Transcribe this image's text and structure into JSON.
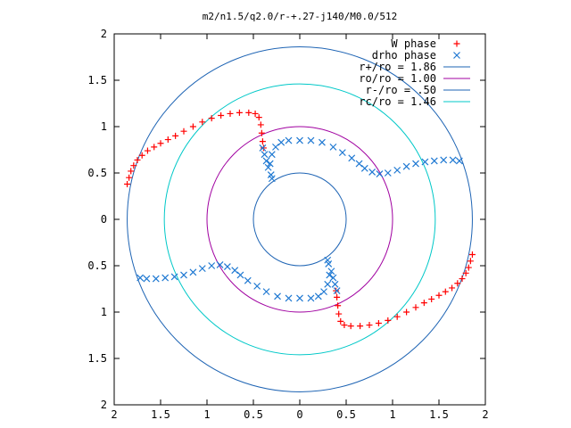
{
  "chart_data": {
    "type": "scatter",
    "title": "m2/n1.5/q2.0/r-+.27-j140/M0.0/512",
    "xlabel": "",
    "ylabel": "",
    "xlim": [
      -2,
      2
    ],
    "ylim": [
      -2,
      2
    ],
    "x_tick_labels": [
      "2",
      "1.5",
      "1",
      "0.5",
      "0",
      "0.5",
      "1",
      "1.5",
      "2"
    ],
    "y_tick_labels": [
      "2",
      "1.5",
      "1",
      "0.5",
      "0",
      "0.5",
      "1",
      "1.5",
      "2"
    ],
    "grid": false,
    "legend_position": "top-right",
    "series": [
      {
        "name": "W phase",
        "kind": "points",
        "marker": "plus",
        "color": "#ff0000",
        "points": [
          [
            -1.86,
            0.38
          ],
          [
            -1.84,
            0.45
          ],
          [
            -1.82,
            0.52
          ],
          [
            -1.79,
            0.58
          ],
          [
            -1.75,
            0.64
          ],
          [
            -1.7,
            0.69
          ],
          [
            -1.64,
            0.74
          ],
          [
            -1.57,
            0.78
          ],
          [
            -1.5,
            0.82
          ],
          [
            -1.42,
            0.86
          ],
          [
            -1.34,
            0.9
          ],
          [
            -1.25,
            0.95
          ],
          [
            -1.15,
            1.0
          ],
          [
            -1.05,
            1.05
          ],
          [
            -0.95,
            1.09
          ],
          [
            -0.85,
            1.12
          ],
          [
            -0.75,
            1.14
          ],
          [
            -0.65,
            1.15
          ],
          [
            -0.55,
            1.15
          ],
          [
            -0.48,
            1.14
          ],
          [
            -0.44,
            1.1
          ],
          [
            -0.42,
            1.02
          ],
          [
            -0.41,
            0.93
          ],
          [
            -0.4,
            0.84
          ],
          [
            -0.39,
            0.77
          ],
          [
            1.86,
            -0.38
          ],
          [
            1.84,
            -0.45
          ],
          [
            1.82,
            -0.52
          ],
          [
            1.79,
            -0.58
          ],
          [
            1.75,
            -0.64
          ],
          [
            1.7,
            -0.69
          ],
          [
            1.64,
            -0.74
          ],
          [
            1.57,
            -0.78
          ],
          [
            1.5,
            -0.82
          ],
          [
            1.42,
            -0.86
          ],
          [
            1.34,
            -0.9
          ],
          [
            1.25,
            -0.95
          ],
          [
            1.15,
            -1.0
          ],
          [
            1.05,
            -1.05
          ],
          [
            0.95,
            -1.09
          ],
          [
            0.85,
            -1.12
          ],
          [
            0.75,
            -1.14
          ],
          [
            0.65,
            -1.15
          ],
          [
            0.55,
            -1.15
          ],
          [
            0.48,
            -1.14
          ],
          [
            0.44,
            -1.1
          ],
          [
            0.42,
            -1.02
          ],
          [
            0.41,
            -0.93
          ],
          [
            0.4,
            -0.84
          ],
          [
            0.39,
            -0.77
          ]
        ]
      },
      {
        "name": "drho phase",
        "kind": "points",
        "marker": "cross",
        "color": "#1e78d2",
        "points": [
          [
            -0.4,
            0.77
          ],
          [
            -0.38,
            0.7
          ],
          [
            -0.36,
            0.63
          ],
          [
            -0.34,
            0.56
          ],
          [
            -0.31,
            0.48
          ],
          [
            -0.3,
            0.44
          ],
          [
            -0.32,
            0.6
          ],
          [
            -0.3,
            0.7
          ],
          [
            -0.26,
            0.78
          ],
          [
            -0.2,
            0.83
          ],
          [
            -0.12,
            0.85
          ],
          [
            0.0,
            0.85
          ],
          [
            0.12,
            0.85
          ],
          [
            0.24,
            0.83
          ],
          [
            0.36,
            0.78
          ],
          [
            0.46,
            0.72
          ],
          [
            0.56,
            0.66
          ],
          [
            0.64,
            0.6
          ],
          [
            0.7,
            0.55
          ],
          [
            0.78,
            0.51
          ],
          [
            0.86,
            0.49
          ],
          [
            0.95,
            0.5
          ],
          [
            1.05,
            0.53
          ],
          [
            1.15,
            0.57
          ],
          [
            1.25,
            0.6
          ],
          [
            1.35,
            0.62
          ],
          [
            1.45,
            0.63
          ],
          [
            1.55,
            0.64
          ],
          [
            1.65,
            0.64
          ],
          [
            1.72,
            0.63
          ],
          [
            0.4,
            -0.77
          ],
          [
            0.38,
            -0.7
          ],
          [
            0.36,
            -0.63
          ],
          [
            0.34,
            -0.56
          ],
          [
            0.31,
            -0.48
          ],
          [
            0.3,
            -0.44
          ],
          [
            0.32,
            -0.6
          ],
          [
            0.3,
            -0.7
          ],
          [
            0.26,
            -0.78
          ],
          [
            0.2,
            -0.83
          ],
          [
            0.12,
            -0.85
          ],
          [
            0.0,
            -0.85
          ],
          [
            -0.12,
            -0.85
          ],
          [
            -0.24,
            -0.83
          ],
          [
            -0.36,
            -0.78
          ],
          [
            -0.46,
            -0.72
          ],
          [
            -0.56,
            -0.66
          ],
          [
            -0.64,
            -0.6
          ],
          [
            -0.7,
            -0.55
          ],
          [
            -0.78,
            -0.51
          ],
          [
            -0.86,
            -0.49
          ],
          [
            -0.95,
            -0.5
          ],
          [
            -1.05,
            -0.53
          ],
          [
            -1.15,
            -0.57
          ],
          [
            -1.25,
            -0.6
          ],
          [
            -1.35,
            -0.62
          ],
          [
            -1.45,
            -0.63
          ],
          [
            -1.55,
            -0.64
          ],
          [
            -1.65,
            -0.64
          ],
          [
            -1.72,
            -0.63
          ]
        ]
      },
      {
        "name": "r+/ro = 1.86",
        "kind": "circle",
        "radius": 1.86,
        "color": "#1e64b4"
      },
      {
        "name": "ro/ro = 1.00",
        "kind": "circle",
        "radius": 1.0,
        "color": "#a000a0"
      },
      {
        "name": "r-/ro = .50",
        "kind": "circle",
        "radius": 0.5,
        "color": "#1e64b4"
      },
      {
        "name": "rc/ro = 1.46",
        "kind": "circle",
        "radius": 1.46,
        "color": "#00c8c8"
      }
    ]
  }
}
